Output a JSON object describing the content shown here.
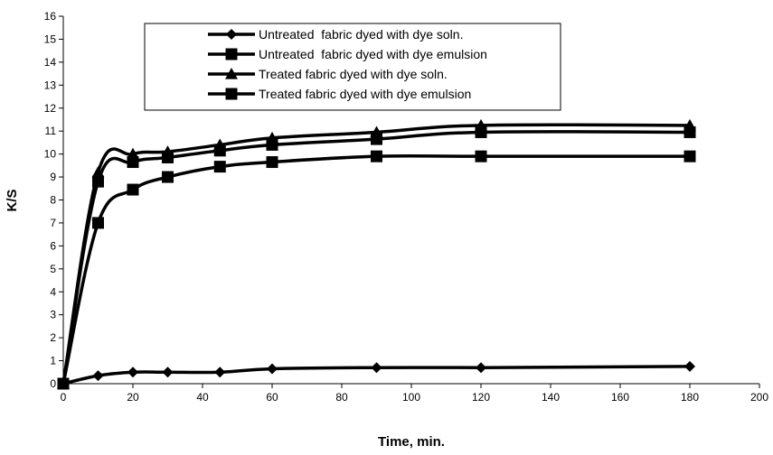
{
  "chart_data": {
    "type": "line",
    "title": "",
    "xlabel": "Time, min.",
    "ylabel": "K/S",
    "xlim": [
      0,
      200
    ],
    "ylim": [
      0,
      16
    ],
    "x_ticks": [
      0,
      20,
      40,
      60,
      80,
      100,
      120,
      140,
      160,
      180,
      200
    ],
    "y_ticks": [
      0,
      1,
      2,
      3,
      4,
      5,
      6,
      7,
      8,
      9,
      10,
      11,
      12,
      13,
      14,
      15,
      16
    ],
    "grid": false,
    "legend_position": "top-center",
    "series": [
      {
        "name": "Untreated  fabric dyed with dye soln.",
        "marker": "diamond",
        "x": [
          0,
          10,
          20,
          30,
          45,
          60,
          90,
          120,
          180
        ],
        "y": [
          0,
          0.35,
          0.5,
          0.5,
          0.5,
          0.65,
          0.7,
          0.7,
          0.75
        ]
      },
      {
        "name": "Untreated  fabric dyed with dye emulsion",
        "marker": "square",
        "x": [
          0,
          10,
          20,
          30,
          45,
          60,
          90,
          120,
          180
        ],
        "y": [
          0,
          7.0,
          8.45,
          9.0,
          9.45,
          9.65,
          9.9,
          9.9,
          9.9
        ]
      },
      {
        "name": "Treated fabric dyed with dye soln.",
        "marker": "triangle",
        "x": [
          0,
          10,
          20,
          30,
          45,
          60,
          90,
          120,
          180
        ],
        "y": [
          0,
          9.2,
          10.0,
          10.1,
          10.4,
          10.7,
          10.95,
          11.25,
          11.25
        ]
      },
      {
        "name": "Treated fabric dyed with dye emulsion",
        "marker": "square",
        "x": [
          0,
          10,
          20,
          30,
          45,
          60,
          90,
          120,
          180
        ],
        "y": [
          0,
          8.8,
          9.65,
          9.85,
          10.15,
          10.4,
          10.65,
          10.95,
          10.95
        ]
      }
    ]
  }
}
